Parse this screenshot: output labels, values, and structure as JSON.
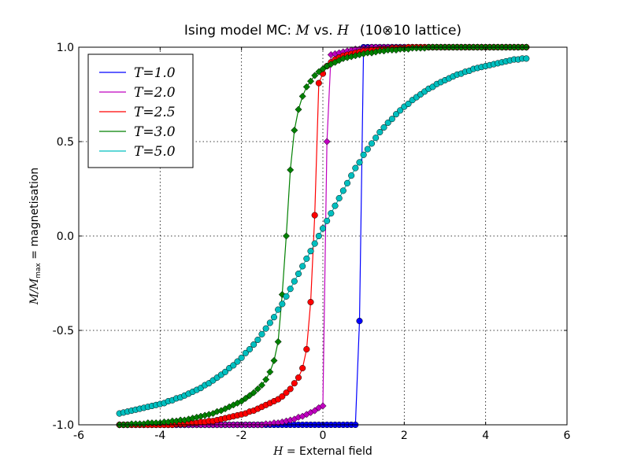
{
  "chart_data": {
    "type": "line",
    "title_prefix": "Ising model MC: ",
    "title_M": "M",
    "title_vs": " vs. ",
    "title_H": "H",
    "title_lattice": "(10⊗10 lattice)",
    "xlabel_var": "H",
    "xlabel_text": " = External field",
    "ylabel_var": "M/M",
    "ylabel_sub": "max",
    "ylabel_text": " = magnetisation",
    "xlim": [
      -6,
      6
    ],
    "ylim": [
      -1.0,
      1.0
    ],
    "xticks": [
      "-6",
      "-4",
      "-2",
      "0",
      "2",
      "4",
      "6"
    ],
    "xtick_values": [
      -6,
      -4,
      -2,
      0,
      2,
      4,
      6
    ],
    "yticks": [
      "-1.0",
      "-0.5",
      "0.0",
      "0.5",
      "1.0"
    ],
    "ytick_values": [
      -1.0,
      -0.5,
      0.0,
      0.5,
      1.0
    ],
    "grid": true,
    "grid_x_values": [
      -4,
      -2,
      0,
      2,
      4
    ],
    "grid_y_values": [
      -0.5,
      0.0,
      0.5
    ],
    "legend_placement": "top-left",
    "x": [
      -5.0,
      -4.9,
      -4.8,
      -4.7,
      -4.6,
      -4.5,
      -4.4,
      -4.3,
      -4.2,
      -4.1,
      -4.0,
      -3.9,
      -3.8,
      -3.7,
      -3.6,
      -3.5,
      -3.4,
      -3.3,
      -3.2,
      -3.1,
      -3.0,
      -2.9,
      -2.8,
      -2.7,
      -2.6,
      -2.5,
      -2.4,
      -2.3,
      -2.2,
      -2.1,
      -2.0,
      -1.9,
      -1.8,
      -1.7,
      -1.6,
      -1.5,
      -1.4,
      -1.3,
      -1.2,
      -1.1,
      -1.0,
      -0.9,
      -0.8,
      -0.7,
      -0.6,
      -0.5,
      -0.4,
      -0.3,
      -0.2,
      -0.1,
      0.0,
      0.1,
      0.2,
      0.3,
      0.4,
      0.5,
      0.6,
      0.7,
      0.8,
      0.9,
      1.0,
      1.1,
      1.2,
      1.3,
      1.4,
      1.5,
      1.6,
      1.7,
      1.8,
      1.9,
      2.0,
      2.1,
      2.2,
      2.3,
      2.4,
      2.5,
      2.6,
      2.7,
      2.8,
      2.9,
      3.0,
      3.1,
      3.2,
      3.3,
      3.4,
      3.5,
      3.6,
      3.7,
      3.8,
      3.9,
      4.0,
      4.1,
      4.2,
      4.3,
      4.4,
      4.5,
      4.6,
      4.7,
      4.8,
      4.9,
      5.0
    ],
    "series": [
      {
        "name": "T=1.0",
        "color": "#0000ff",
        "marker": "circle",
        "values": [
          -1.0,
          -1.0,
          -1.0,
          -1.0,
          -1.0,
          -1.0,
          -1.0,
          -1.0,
          -1.0,
          -1.0,
          -1.0,
          -1.0,
          -1.0,
          -1.0,
          -1.0,
          -1.0,
          -1.0,
          -1.0,
          -1.0,
          -1.0,
          -1.0,
          -1.0,
          -1.0,
          -1.0,
          -1.0,
          -1.0,
          -1.0,
          -1.0,
          -1.0,
          -1.0,
          -1.0,
          -1.0,
          -1.0,
          -1.0,
          -1.0,
          -1.0,
          -1.0,
          -1.0,
          -1.0,
          -1.0,
          -1.0,
          -1.0,
          -1.0,
          -1.0,
          -1.0,
          -1.0,
          -1.0,
          -1.0,
          -1.0,
          -1.0,
          -1.0,
          -1.0,
          -1.0,
          -1.0,
          -1.0,
          -1.0,
          -1.0,
          -1.0,
          -1.0,
          -0.45,
          1.0,
          1.0,
          1.0,
          1.0,
          1.0,
          1.0,
          1.0,
          1.0,
          1.0,
          1.0,
          1.0,
          1.0,
          1.0,
          1.0,
          1.0,
          1.0,
          1.0,
          1.0,
          1.0,
          1.0,
          1.0,
          1.0,
          1.0,
          1.0,
          1.0,
          1.0,
          1.0,
          1.0,
          1.0,
          1.0,
          1.0,
          1.0,
          1.0,
          1.0,
          1.0,
          1.0,
          1.0,
          1.0,
          1.0,
          1.0,
          1.0
        ]
      },
      {
        "name": "T=2.0",
        "color": "#bf00bf",
        "marker": "diamond",
        "values": [
          -1.0,
          -1.0,
          -1.0,
          -1.0,
          -1.0,
          -1.0,
          -1.0,
          -1.0,
          -1.0,
          -1.0,
          -1.0,
          -1.0,
          -1.0,
          -1.0,
          -1.0,
          -1.0,
          -1.0,
          -1.0,
          -1.0,
          -1.0,
          -1.0,
          -1.0,
          -1.0,
          -1.0,
          -1.0,
          -1.0,
          -1.0,
          -1.0,
          -1.0,
          -1.0,
          -1.0,
          -1.0,
          -1.0,
          -1.0,
          -1.0,
          -1.0,
          -0.995,
          -0.995,
          -0.99,
          -0.99,
          -0.985,
          -0.98,
          -0.975,
          -0.97,
          -0.96,
          -0.955,
          -0.945,
          -0.935,
          -0.925,
          -0.91,
          -0.9,
          0.5,
          0.96,
          0.965,
          0.97,
          0.975,
          0.98,
          0.985,
          0.99,
          0.99,
          0.995,
          0.995,
          1.0,
          1.0,
          1.0,
          1.0,
          1.0,
          1.0,
          1.0,
          1.0,
          1.0,
          1.0,
          1.0,
          1.0,
          1.0,
          1.0,
          1.0,
          1.0,
          1.0,
          1.0,
          1.0,
          1.0,
          1.0,
          1.0,
          1.0,
          1.0,
          1.0,
          1.0,
          1.0,
          1.0,
          1.0,
          1.0,
          1.0,
          1.0,
          1.0,
          1.0,
          1.0,
          1.0,
          1.0,
          1.0,
          1.0
        ]
      },
      {
        "name": "T=2.5",
        "color": "#ff0000",
        "marker": "circle",
        "values": [
          -1.0,
          -1.0,
          -1.0,
          -1.0,
          -1.0,
          -1.0,
          -1.0,
          -1.0,
          -1.0,
          -1.0,
          -1.0,
          -1.0,
          -1.0,
          -1.0,
          -0.995,
          -0.995,
          -0.995,
          -0.99,
          -0.99,
          -0.99,
          -0.985,
          -0.985,
          -0.98,
          -0.98,
          -0.975,
          -0.97,
          -0.965,
          -0.96,
          -0.955,
          -0.95,
          -0.945,
          -0.94,
          -0.93,
          -0.925,
          -0.915,
          -0.905,
          -0.895,
          -0.885,
          -0.875,
          -0.865,
          -0.85,
          -0.83,
          -0.81,
          -0.78,
          -0.75,
          -0.7,
          -0.6,
          -0.35,
          0.11,
          0.81,
          0.86,
          0.9,
          0.92,
          0.935,
          0.945,
          0.955,
          0.96,
          0.965,
          0.97,
          0.975,
          0.98,
          0.98,
          0.985,
          0.985,
          0.99,
          0.99,
          0.99,
          0.995,
          0.995,
          0.995,
          0.995,
          1.0,
          1.0,
          1.0,
          1.0,
          1.0,
          1.0,
          1.0,
          1.0,
          1.0,
          1.0,
          1.0,
          1.0,
          1.0,
          1.0,
          1.0,
          1.0,
          1.0,
          1.0,
          1.0,
          1.0,
          1.0,
          1.0,
          1.0,
          1.0,
          1.0,
          1.0,
          1.0,
          1.0,
          1.0,
          1.0
        ]
      },
      {
        "name": "T=3.0",
        "color": "#008000",
        "marker": "diamond",
        "values": [
          -1.0,
          -1.0,
          -1.0,
          -0.995,
          -0.995,
          -0.995,
          -0.995,
          -0.99,
          -0.99,
          -0.99,
          -0.99,
          -0.985,
          -0.985,
          -0.98,
          -0.98,
          -0.975,
          -0.975,
          -0.97,
          -0.965,
          -0.96,
          -0.955,
          -0.95,
          -0.945,
          -0.94,
          -0.93,
          -0.925,
          -0.915,
          -0.905,
          -0.895,
          -0.885,
          -0.875,
          -0.86,
          -0.845,
          -0.83,
          -0.81,
          -0.79,
          -0.76,
          -0.72,
          -0.66,
          -0.56,
          -0.31,
          0.0,
          0.35,
          0.56,
          0.67,
          0.74,
          0.79,
          0.82,
          0.85,
          0.87,
          0.885,
          0.9,
          0.91,
          0.92,
          0.93,
          0.94,
          0.945,
          0.95,
          0.955,
          0.96,
          0.965,
          0.97,
          0.97,
          0.975,
          0.98,
          0.98,
          0.985,
          0.985,
          0.985,
          0.99,
          0.99,
          0.99,
          0.995,
          0.995,
          0.995,
          0.995,
          1.0,
          1.0,
          1.0,
          1.0,
          1.0,
          1.0,
          1.0,
          1.0,
          1.0,
          1.0,
          1.0,
          1.0,
          1.0,
          1.0,
          1.0,
          1.0,
          1.0,
          1.0,
          1.0,
          1.0,
          1.0,
          1.0,
          1.0,
          1.0,
          1.0
        ]
      },
      {
        "name": "T=5.0",
        "color": "#00bfbf",
        "marker": "circle",
        "values": [
          -0.94,
          -0.935,
          -0.93,
          -0.925,
          -0.92,
          -0.915,
          -0.91,
          -0.905,
          -0.9,
          -0.895,
          -0.89,
          -0.885,
          -0.875,
          -0.87,
          -0.86,
          -0.855,
          -0.845,
          -0.835,
          -0.825,
          -0.815,
          -0.805,
          -0.79,
          -0.78,
          -0.765,
          -0.75,
          -0.735,
          -0.72,
          -0.7,
          -0.685,
          -0.665,
          -0.645,
          -0.62,
          -0.6,
          -0.575,
          -0.55,
          -0.52,
          -0.49,
          -0.46,
          -0.43,
          -0.39,
          -0.36,
          -0.32,
          -0.28,
          -0.24,
          -0.2,
          -0.16,
          -0.12,
          -0.08,
          -0.04,
          0.0,
          0.04,
          0.08,
          0.12,
          0.16,
          0.2,
          0.24,
          0.28,
          0.32,
          0.36,
          0.39,
          0.43,
          0.46,
          0.49,
          0.52,
          0.55,
          0.575,
          0.6,
          0.62,
          0.645,
          0.665,
          0.685,
          0.7,
          0.72,
          0.735,
          0.75,
          0.765,
          0.78,
          0.79,
          0.805,
          0.815,
          0.825,
          0.835,
          0.845,
          0.855,
          0.86,
          0.87,
          0.875,
          0.885,
          0.89,
          0.895,
          0.9,
          0.905,
          0.91,
          0.915,
          0.92,
          0.925,
          0.93,
          0.935,
          0.935,
          0.94,
          0.94
        ]
      }
    ]
  }
}
